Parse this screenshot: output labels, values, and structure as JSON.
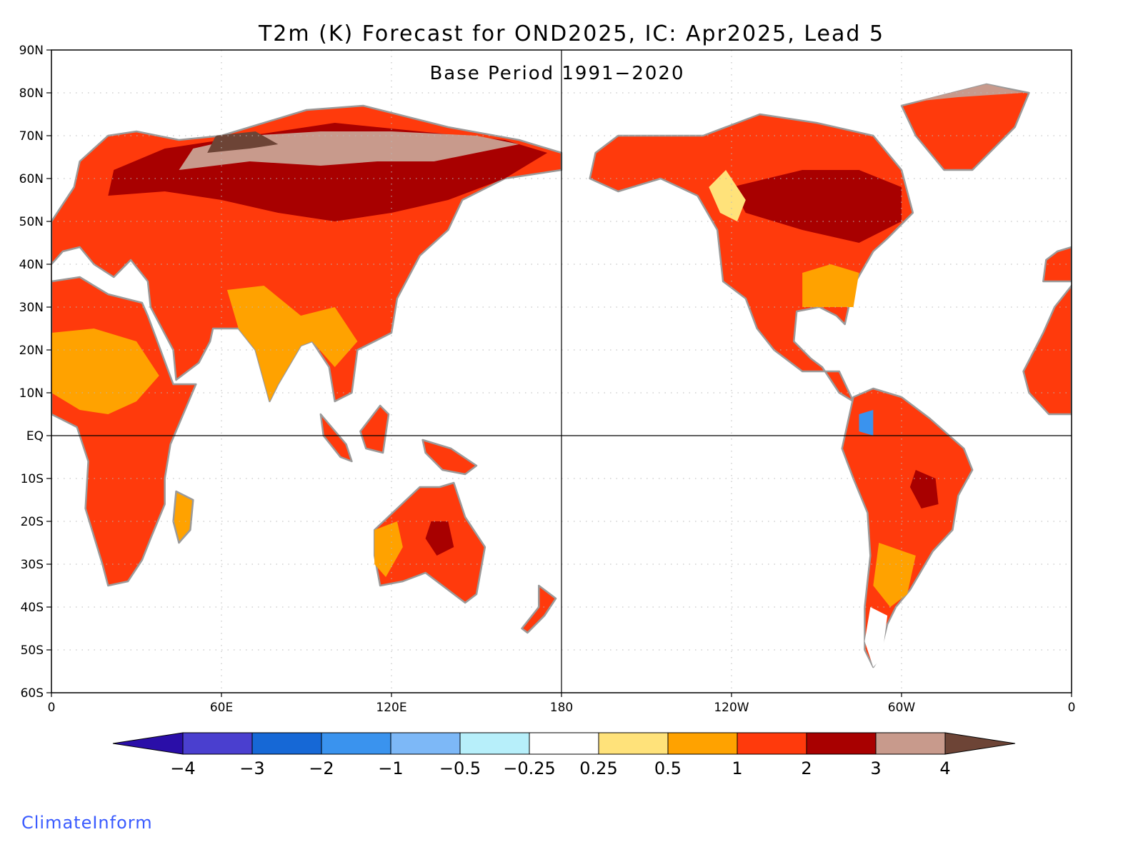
{
  "title": "T2m (K) Forecast for OND2025, IC: Apr2025, Lead 5",
  "subtitle": "Base Period 1991−2020",
  "brand": "ClimateInform",
  "map": {
    "y_ticks": [
      "90N",
      "80N",
      "70N",
      "60N",
      "50N",
      "40N",
      "30N",
      "20N",
      "10N",
      "EQ",
      "10S",
      "20S",
      "30S",
      "40S",
      "50S",
      "60S"
    ],
    "x_ticks": [
      "0",
      "60E",
      "120E",
      "180",
      "120W",
      "60W",
      "0"
    ]
  },
  "colorbar": {
    "labels": [
      "−4",
      "−3",
      "−2",
      "−1",
      "−0.5",
      "−0.25",
      "0.25",
      "0.5",
      "1",
      "2",
      "3",
      "4"
    ],
    "colors": [
      "#2a0ea8",
      "#4a3fcf",
      "#1668d6",
      "#3a93ee",
      "#7db8f7",
      "#b7effa",
      "#ffffff",
      "#ffe27a",
      "#ffa200",
      "#ff3a0c",
      "#a80000",
      "#c89a8c",
      "#6d4436"
    ]
  },
  "colors": {
    "land_outline": "#9a9a9a",
    "ocean": "#ffffff",
    "frame": "#000000"
  }
}
